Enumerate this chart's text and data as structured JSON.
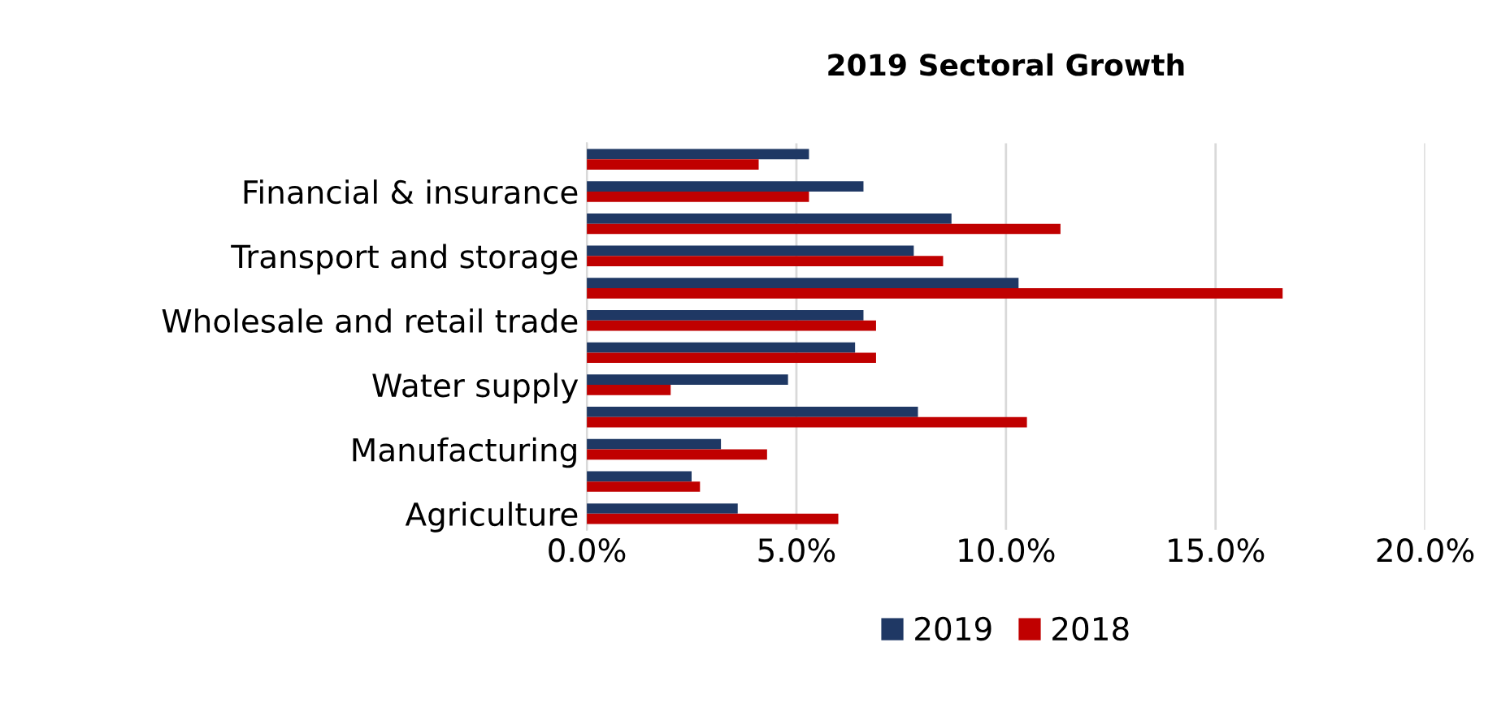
{
  "chart_data": {
    "type": "bar",
    "orientation": "horizontal",
    "title": "2019 Sectoral Growth",
    "categories": [
      null,
      "Financial & insurance",
      null,
      "Transport and storage",
      null,
      "Wholesale and retail trade",
      null,
      "Water supply",
      null,
      "Manufacturing",
      null,
      "Agriculture"
    ],
    "series": [
      {
        "name": "2019",
        "color": "#1f3864",
        "values": [
          5.3,
          6.6,
          8.7,
          7.8,
          10.3,
          6.6,
          6.4,
          4.8,
          7.9,
          3.2,
          2.5,
          3.6
        ]
      },
      {
        "name": "2018",
        "color": "#c00000",
        "values": [
          4.1,
          5.3,
          11.3,
          8.5,
          16.6,
          6.9,
          6.9,
          2.0,
          10.5,
          4.3,
          2.7,
          6.0
        ]
      }
    ],
    "xlim": [
      0,
      20
    ],
    "xticks": [
      {
        "value": 0,
        "label": "0.0%"
      },
      {
        "value": 5,
        "label": "5.0%"
      },
      {
        "value": 10,
        "label": "10.0%"
      },
      {
        "value": 15,
        "label": "15.0%"
      },
      {
        "value": 20,
        "label": "20.0%"
      }
    ],
    "grid": "x",
    "legend": "bottom"
  }
}
